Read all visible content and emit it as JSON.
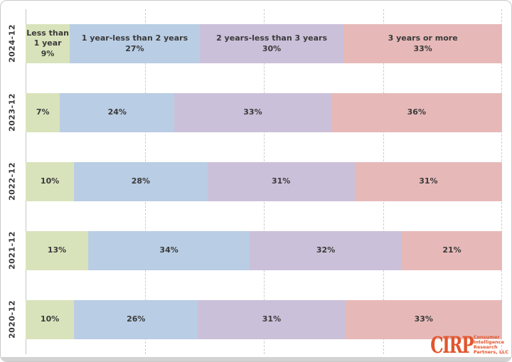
{
  "chart_data": {
    "type": "bar",
    "variant": "horizontal-stacked",
    "title": "",
    "xlabel": "",
    "ylabel": "",
    "xlim": [
      0,
      100
    ],
    "value_suffix": "%",
    "grid": "vertical-dashed",
    "gridline_positions_pct": [
      25,
      50,
      75,
      100
    ],
    "categories": [
      "2024-12",
      "2023-12",
      "2022-12",
      "2021-12",
      "2020-12"
    ],
    "series": [
      {
        "name": "Less than 1 year",
        "color": "#d9e3bb",
        "values": [
          9,
          7,
          10,
          13,
          10
        ]
      },
      {
        "name": "1 year-less than 2 years",
        "color": "#b9cde4",
        "values": [
          27,
          24,
          28,
          34,
          26
        ]
      },
      {
        "name": "2 years-less than 3 years",
        "color": "#cbc0d9",
        "values": [
          30,
          33,
          31,
          32,
          31
        ]
      },
      {
        "name": "3 years or more",
        "color": "#e6b9b8",
        "values": [
          33,
          36,
          31,
          21,
          33
        ]
      }
    ],
    "legend": "series names shown inside first (top) bar segments",
    "label_color": "#3a3a3a"
  },
  "branding": {
    "logo_text": "CIRP",
    "logo_lines": [
      "Consumer",
      "Intelligence",
      "Research",
      "Partners, LLC"
    ],
    "logo_color": "#e2552d"
  }
}
